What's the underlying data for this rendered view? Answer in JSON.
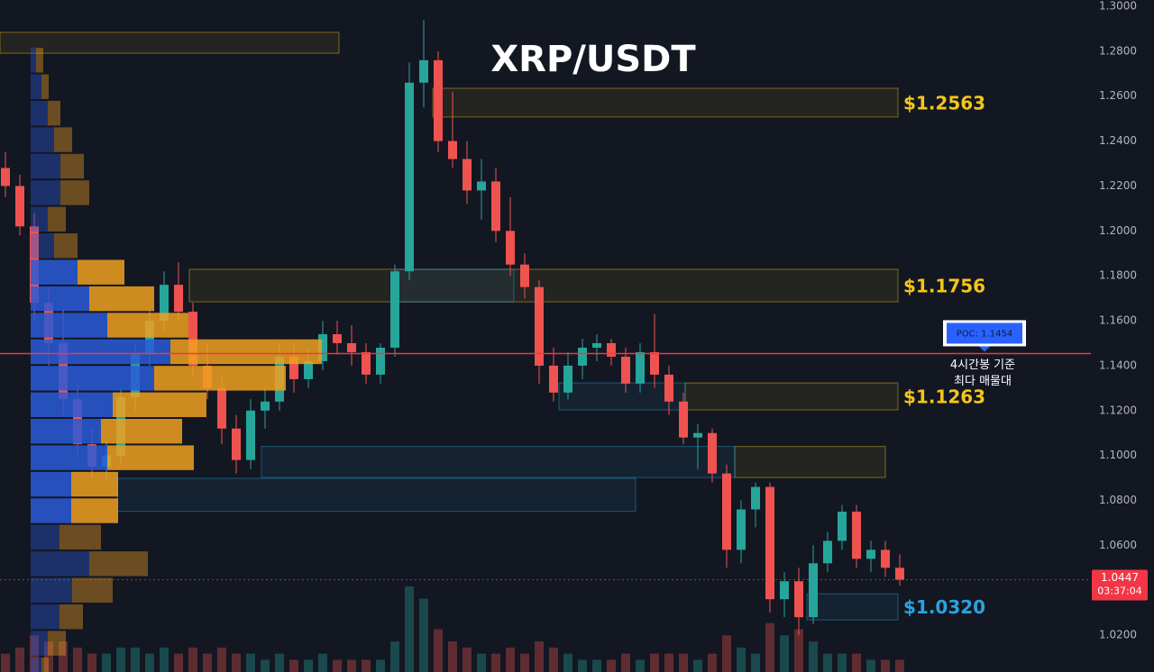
{
  "chart_data": {
    "type": "candlestick",
    "title": "XRP/USDT",
    "open": [
      1.228,
      1.22,
      1.202,
      1.168,
      1.15,
      1.125,
      1.105,
      1.095,
      1.1,
      1.126,
      1.145,
      1.16,
      1.176,
      1.164,
      1.14,
      1.13,
      1.112,
      1.098,
      1.12,
      1.124,
      1.144,
      1.134,
      1.142,
      1.154,
      1.15,
      1.146,
      1.136,
      1.148,
      1.182,
      1.266,
      1.276,
      1.24,
      1.232,
      1.218,
      1.222,
      1.2,
      1.185,
      1.175,
      1.14,
      1.128,
      1.14,
      1.148,
      1.15,
      1.144,
      1.132,
      1.146,
      1.136,
      1.124,
      1.108,
      1.11,
      1.092,
      1.058,
      1.076,
      1.086,
      1.036,
      1.044,
      1.028,
      1.052,
      1.062,
      1.075,
      1.054,
      1.058,
      1.05
    ],
    "high": [
      1.235,
      1.225,
      1.208,
      1.175,
      1.165,
      1.132,
      1.112,
      1.108,
      1.13,
      1.15,
      1.165,
      1.182,
      1.186,
      1.168,
      1.15,
      1.136,
      1.118,
      1.125,
      1.13,
      1.15,
      1.15,
      1.148,
      1.16,
      1.16,
      1.158,
      1.15,
      1.15,
      1.185,
      1.275,
      1.294,
      1.28,
      1.262,
      1.24,
      1.232,
      1.228,
      1.215,
      1.19,
      1.178,
      1.148,
      1.146,
      1.152,
      1.154,
      1.152,
      1.148,
      1.15,
      1.163,
      1.14,
      1.128,
      1.114,
      1.112,
      1.096,
      1.08,
      1.088,
      1.088,
      1.048,
      1.05,
      1.06,
      1.066,
      1.078,
      1.078,
      1.062,
      1.062,
      1.056
    ],
    "low": [
      1.215,
      1.198,
      1.16,
      1.14,
      1.118,
      1.1,
      1.09,
      1.088,
      1.096,
      1.12,
      1.14,
      1.155,
      1.16,
      1.135,
      1.125,
      1.105,
      1.092,
      1.094,
      1.112,
      1.12,
      1.128,
      1.13,
      1.138,
      1.145,
      1.14,
      1.132,
      1.132,
      1.144,
      1.178,
      1.255,
      1.235,
      1.228,
      1.212,
      1.205,
      1.195,
      1.18,
      1.17,
      1.132,
      1.124,
      1.125,
      1.134,
      1.142,
      1.14,
      1.128,
      1.128,
      1.13,
      1.118,
      1.105,
      1.094,
      1.088,
      1.05,
      1.052,
      1.068,
      1.03,
      1.028,
      1.02,
      1.025,
      1.048,
      1.058,
      1.05,
      1.048,
      1.046,
      1.042
    ],
    "close": [
      1.22,
      1.202,
      1.168,
      1.15,
      1.125,
      1.105,
      1.095,
      1.1,
      1.126,
      1.145,
      1.16,
      1.176,
      1.164,
      1.14,
      1.13,
      1.112,
      1.098,
      1.12,
      1.124,
      1.144,
      1.134,
      1.142,
      1.154,
      1.15,
      1.146,
      1.136,
      1.148,
      1.182,
      1.266,
      1.276,
      1.24,
      1.232,
      1.218,
      1.222,
      1.2,
      1.185,
      1.175,
      1.14,
      1.128,
      1.14,
      1.148,
      1.15,
      1.144,
      1.132,
      1.146,
      1.136,
      1.124,
      1.108,
      1.11,
      1.092,
      1.058,
      1.076,
      1.086,
      1.036,
      1.044,
      1.028,
      1.052,
      1.062,
      1.075,
      1.054,
      1.058,
      1.05,
      1.0447
    ],
    "volume": [
      3,
      4,
      6,
      5,
      5,
      4,
      3,
      3,
      4,
      4,
      3,
      4,
      3,
      4,
      3,
      4,
      3,
      3,
      2,
      3,
      2,
      2,
      3,
      2,
      2,
      2,
      2,
      5,
      14,
      12,
      7,
      5,
      4,
      3,
      3,
      4,
      3,
      5,
      4,
      3,
      2,
      2,
      2,
      3,
      2,
      3,
      3,
      3,
      2,
      3,
      6,
      4,
      3,
      8,
      6,
      7,
      5,
      3,
      3,
      3,
      2,
      2,
      2
    ],
    "up_color": "#26a69a",
    "down_color": "#ef5350",
    "ylim": [
      1.0036,
      1.3028
    ],
    "yticks": [
      {
        "value": 1.3,
        "label": "1.3000"
      },
      {
        "value": 1.28,
        "label": "1.2800"
      },
      {
        "value": 1.26,
        "label": "1.2600"
      },
      {
        "value": 1.24,
        "label": "1.2400"
      },
      {
        "value": 1.22,
        "label": "1.2200"
      },
      {
        "value": 1.2,
        "label": "1.2000"
      },
      {
        "value": 1.18,
        "label": "1.1800"
      },
      {
        "value": 1.16,
        "label": "1.1600"
      },
      {
        "value": 1.14,
        "label": "1.1400"
      },
      {
        "value": 1.12,
        "label": "1.1200"
      },
      {
        "value": 1.1,
        "label": "1.1000"
      },
      {
        "value": 1.08,
        "label": "1.0800"
      },
      {
        "value": 1.06,
        "label": "1.0600"
      },
      {
        "value": 1.04,
        "label": "1.0400"
      },
      {
        "value": 1.02,
        "label": "1.0200"
      }
    ],
    "grid": false,
    "volume_profile": {
      "bins": [
        1.2819,
        1.2701,
        1.2583,
        1.2465,
        1.2347,
        1.2229,
        1.2111,
        1.1993,
        1.1875,
        1.1757,
        1.1639,
        1.1521,
        1.1403,
        1.1285,
        1.1167,
        1.1049,
        1.0931,
        1.0813,
        1.0695,
        1.0577,
        1.0459,
        1.0341,
        1.0223,
        1.0105,
        0.9987
      ],
      "buy": [
        6,
        12,
        19,
        26,
        33,
        33,
        19,
        26,
        52,
        65,
        85,
        155,
        137,
        91,
        78,
        85,
        45,
        45,
        32,
        65,
        46,
        32,
        19,
        12
      ],
      "sell": [
        8,
        8,
        14,
        20,
        26,
        32,
        20,
        26,
        52,
        72,
        90,
        168,
        146,
        104,
        90,
        96,
        52,
        52,
        46,
        65,
        45,
        26,
        20,
        8
      ],
      "value_area": [
        1.0695,
        1.1875
      ],
      "buy_color": "#2a5bd7",
      "sell_color": "#f0a020"
    },
    "zones": [
      {
        "top": 1.2884,
        "bottom": 1.2791,
        "color": "#f5c518"
      },
      {
        "label": "$1.2563",
        "top": 1.2635,
        "bottom": 1.2507,
        "color": "#f5c518"
      },
      {
        "label": "$1.1756",
        "top": 1.1829,
        "bottom": 1.1684,
        "color": "#f5c518"
      },
      {
        "label": "$1.1263",
        "top": 1.1323,
        "bottom": 1.1203,
        "color": "#f5c518"
      },
      {
        "top": 1.104,
        "bottom": 1.0902,
        "color": "#f5c518"
      },
      {
        "label": "$1.0320",
        "top": 1.0384,
        "bottom": 1.0268,
        "color": "#29a3e0"
      },
      {
        "top": 1.1829,
        "bottom": 1.1684,
        "color": "#29a3e0"
      },
      {
        "top": 1.1323,
        "bottom": 1.1203,
        "color": "#29a3e0"
      },
      {
        "top": 1.104,
        "bottom": 1.0902,
        "color": "#29a3e0"
      },
      {
        "top": 1.0898,
        "bottom": 1.0751,
        "color": "#29a3e0"
      }
    ],
    "poc": {
      "value": 1.1454,
      "label": "POC: 1.1454",
      "color": "#f23645"
    },
    "annotation": [
      "4시간봉 기준",
      "최다 매물대"
    ],
    "last_price": 1.0447,
    "countdown": "03:37:04"
  }
}
